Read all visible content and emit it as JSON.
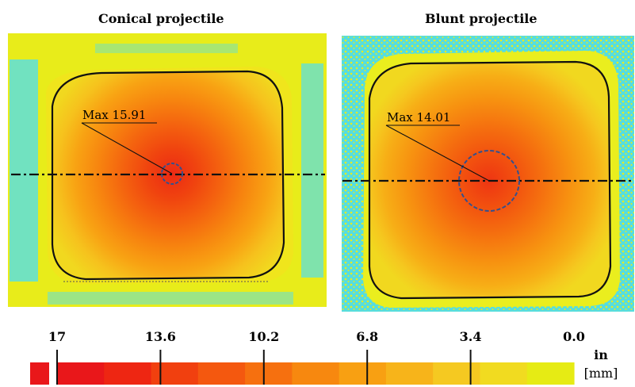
{
  "panels": [
    {
      "title": "Conical projectile",
      "max_label": "Max 15.91"
    },
    {
      "title": "Blunt projectile",
      "max_label": "Max 14.01"
    }
  ],
  "colorbar": {
    "ticks": [
      "17",
      "13.6",
      "10.2",
      "6.8",
      "3.4",
      "0.0"
    ],
    "unit_line1": "in",
    "unit_line2": "[mm]",
    "colors": [
      "#e9171a",
      "#ee2612",
      "#f1400f",
      "#f4580f",
      "#f6700f",
      "#f7880f",
      "#f8a012",
      "#f7b41a",
      "#f5c921",
      "#f1db20",
      "#e6eb14"
    ]
  }
}
